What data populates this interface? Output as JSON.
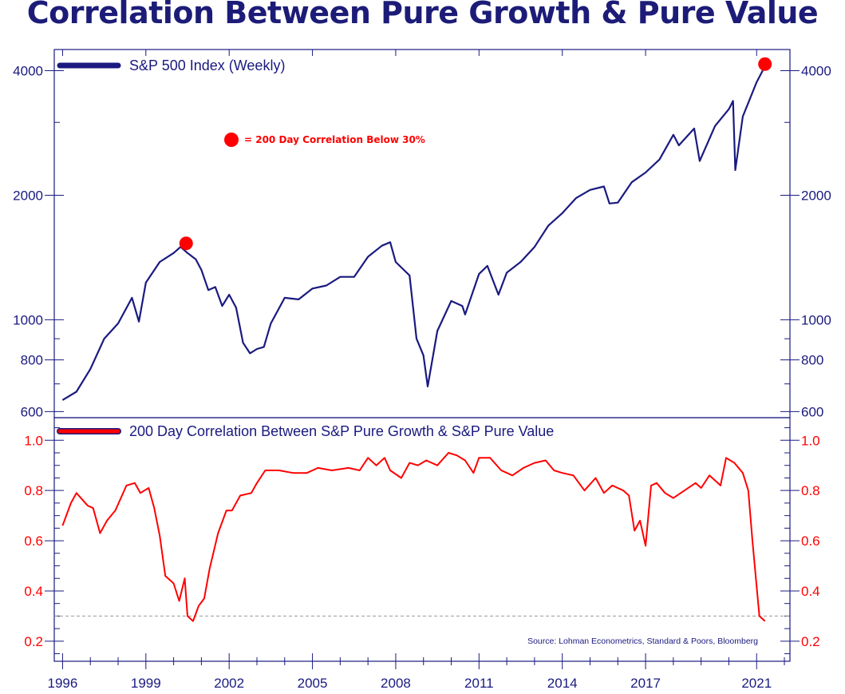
{
  "title": "Correlation Between Pure Growth & Pure Value",
  "colors": {
    "title": "#1c1c78",
    "top_series": "#1a1a80",
    "bottom_series": "#ff0000",
    "marker": "#ff0000",
    "threshold": "#999999"
  },
  "annotation": {
    "marker_label": "= 200 Day Correlation Below 30%"
  },
  "source": "Source: Lohman Econometrics, Standard & Poors, Bloomberg",
  "chart_data": [
    {
      "type": "line",
      "title": "S&P 500 Index (Weekly)",
      "yscale": "log",
      "ylim": [
        580,
        4500
      ],
      "y_ticks": [
        600,
        800,
        1000,
        2000,
        4000
      ],
      "y_tick_labels": [
        "600",
        "800",
        "1000",
        "2000",
        "4000"
      ],
      "xlim": [
        1995.7,
        2022.2
      ],
      "series": [
        {
          "name": "S&P 500 Index (Weekly)",
          "points": [
            [
              1996.0,
              640
            ],
            [
              1996.5,
              670
            ],
            [
              1997.0,
              760
            ],
            [
              1997.5,
              900
            ],
            [
              1998.0,
              980
            ],
            [
              1998.5,
              1130
            ],
            [
              1998.75,
              990
            ],
            [
              1999.0,
              1230
            ],
            [
              1999.5,
              1380
            ],
            [
              2000.0,
              1450
            ],
            [
              2000.25,
              1500
            ],
            [
              2000.5,
              1450
            ],
            [
              2000.8,
              1400
            ],
            [
              2001.0,
              1320
            ],
            [
              2001.25,
              1180
            ],
            [
              2001.5,
              1200
            ],
            [
              2001.75,
              1080
            ],
            [
              2002.0,
              1150
            ],
            [
              2002.25,
              1070
            ],
            [
              2002.5,
              880
            ],
            [
              2002.75,
              830
            ],
            [
              2003.0,
              850
            ],
            [
              2003.25,
              860
            ],
            [
              2003.5,
              980
            ],
            [
              2004.0,
              1130
            ],
            [
              2004.5,
              1120
            ],
            [
              2005.0,
              1190
            ],
            [
              2005.5,
              1210
            ],
            [
              2006.0,
              1270
            ],
            [
              2006.5,
              1270
            ],
            [
              2007.0,
              1420
            ],
            [
              2007.5,
              1510
            ],
            [
              2007.8,
              1540
            ],
            [
              2008.0,
              1380
            ],
            [
              2008.5,
              1280
            ],
            [
              2008.75,
              900
            ],
            [
              2009.0,
              820
            ],
            [
              2009.15,
              690
            ],
            [
              2009.5,
              940
            ],
            [
              2010.0,
              1110
            ],
            [
              2010.4,
              1080
            ],
            [
              2010.5,
              1030
            ],
            [
              2011.0,
              1290
            ],
            [
              2011.3,
              1350
            ],
            [
              2011.7,
              1150
            ],
            [
              2012.0,
              1300
            ],
            [
              2012.5,
              1380
            ],
            [
              2013.0,
              1500
            ],
            [
              2013.5,
              1690
            ],
            [
              2014.0,
              1810
            ],
            [
              2014.5,
              1970
            ],
            [
              2015.0,
              2060
            ],
            [
              2015.5,
              2100
            ],
            [
              2015.7,
              1910
            ],
            [
              2016.0,
              1920
            ],
            [
              2016.5,
              2150
            ],
            [
              2017.0,
              2270
            ],
            [
              2017.5,
              2440
            ],
            [
              2018.0,
              2800
            ],
            [
              2018.2,
              2640
            ],
            [
              2018.75,
              2900
            ],
            [
              2018.95,
              2420
            ],
            [
              2019.5,
              2940
            ],
            [
              2020.0,
              3230
            ],
            [
              2020.15,
              3380
            ],
            [
              2020.23,
              2300
            ],
            [
              2020.5,
              3100
            ],
            [
              2021.0,
              3750
            ],
            [
              2021.3,
              4100
            ]
          ]
        }
      ],
      "markers": [
        {
          "x": 2000.45,
          "y": 1530
        },
        {
          "x": 2021.3,
          "y": 4150
        }
      ]
    },
    {
      "type": "line",
      "title": "200 Day Correlation Between S&P Pure Growth & S&P Pure Value",
      "ylim": [
        0.12,
        1.09
      ],
      "y_ticks": [
        0.2,
        0.4,
        0.6,
        0.8,
        1.0
      ],
      "y_tick_labels": [
        "0.2",
        "0.4",
        "0.6",
        "0.8",
        "1.0"
      ],
      "xlim": [
        1995.7,
        2022.2
      ],
      "x_ticks": [
        1996,
        1999,
        2002,
        2005,
        2008,
        2011,
        2014,
        2017,
        2021
      ],
      "x_tick_labels": [
        "1996",
        "1999",
        "2002",
        "2005",
        "2008",
        "2011",
        "2014",
        "2017",
        "2021"
      ],
      "threshold": 0.3,
      "series": [
        {
          "name": "200 Day Correlation Between S&P Pure Growth & S&P Pure Value",
          "points": [
            [
              1996.0,
              0.66
            ],
            [
              1996.3,
              0.75
            ],
            [
              1996.5,
              0.79
            ],
            [
              1996.9,
              0.74
            ],
            [
              1997.1,
              0.73
            ],
            [
              1997.35,
              0.63
            ],
            [
              1997.6,
              0.68
            ],
            [
              1997.9,
              0.72
            ],
            [
              1998.1,
              0.77
            ],
            [
              1998.3,
              0.82
            ],
            [
              1998.6,
              0.83
            ],
            [
              1998.8,
              0.79
            ],
            [
              1999.1,
              0.81
            ],
            [
              1999.3,
              0.73
            ],
            [
              1999.5,
              0.62
            ],
            [
              1999.7,
              0.46
            ],
            [
              2000.0,
              0.43
            ],
            [
              2000.2,
              0.36
            ],
            [
              2000.4,
              0.45
            ],
            [
              2000.5,
              0.3
            ],
            [
              2000.7,
              0.28
            ],
            [
              2000.9,
              0.34
            ],
            [
              2001.1,
              0.37
            ],
            [
              2001.3,
              0.49
            ],
            [
              2001.6,
              0.63
            ],
            [
              2001.9,
              0.72
            ],
            [
              2002.1,
              0.72
            ],
            [
              2002.4,
              0.78
            ],
            [
              2002.8,
              0.79
            ],
            [
              2003.0,
              0.83
            ],
            [
              2003.3,
              0.88
            ],
            [
              2003.8,
              0.88
            ],
            [
              2004.3,
              0.87
            ],
            [
              2004.8,
              0.87
            ],
            [
              2005.2,
              0.89
            ],
            [
              2005.7,
              0.88
            ],
            [
              2006.3,
              0.89
            ],
            [
              2006.7,
              0.88
            ],
            [
              2007.0,
              0.93
            ],
            [
              2007.3,
              0.9
            ],
            [
              2007.6,
              0.93
            ],
            [
              2007.8,
              0.88
            ],
            [
              2008.2,
              0.85
            ],
            [
              2008.5,
              0.91
            ],
            [
              2008.8,
              0.9
            ],
            [
              2009.1,
              0.92
            ],
            [
              2009.5,
              0.9
            ],
            [
              2009.9,
              0.95
            ],
            [
              2010.2,
              0.94
            ],
            [
              2010.5,
              0.92
            ],
            [
              2010.8,
              0.87
            ],
            [
              2011.0,
              0.93
            ],
            [
              2011.4,
              0.93
            ],
            [
              2011.8,
              0.88
            ],
            [
              2012.2,
              0.86
            ],
            [
              2012.6,
              0.89
            ],
            [
              2013.0,
              0.91
            ],
            [
              2013.4,
              0.92
            ],
            [
              2013.7,
              0.88
            ],
            [
              2014.0,
              0.87
            ],
            [
              2014.4,
              0.86
            ],
            [
              2014.8,
              0.8
            ],
            [
              2015.2,
              0.85
            ],
            [
              2015.5,
              0.79
            ],
            [
              2015.8,
              0.82
            ],
            [
              2016.2,
              0.8
            ],
            [
              2016.4,
              0.78
            ],
            [
              2016.6,
              0.64
            ],
            [
              2016.8,
              0.68
            ],
            [
              2017.0,
              0.58
            ],
            [
              2017.2,
              0.82
            ],
            [
              2017.4,
              0.83
            ],
            [
              2017.7,
              0.79
            ],
            [
              2018.0,
              0.77
            ],
            [
              2018.4,
              0.8
            ],
            [
              2018.8,
              0.83
            ],
            [
              2019.0,
              0.81
            ],
            [
              2019.3,
              0.86
            ],
            [
              2019.7,
              0.82
            ],
            [
              2019.9,
              0.93
            ],
            [
              2020.2,
              0.91
            ],
            [
              2020.5,
              0.87
            ],
            [
              2020.7,
              0.8
            ],
            [
              2020.85,
              0.6
            ],
            [
              2021.0,
              0.42
            ],
            [
              2021.1,
              0.3
            ],
            [
              2021.3,
              0.28
            ]
          ]
        }
      ]
    }
  ]
}
